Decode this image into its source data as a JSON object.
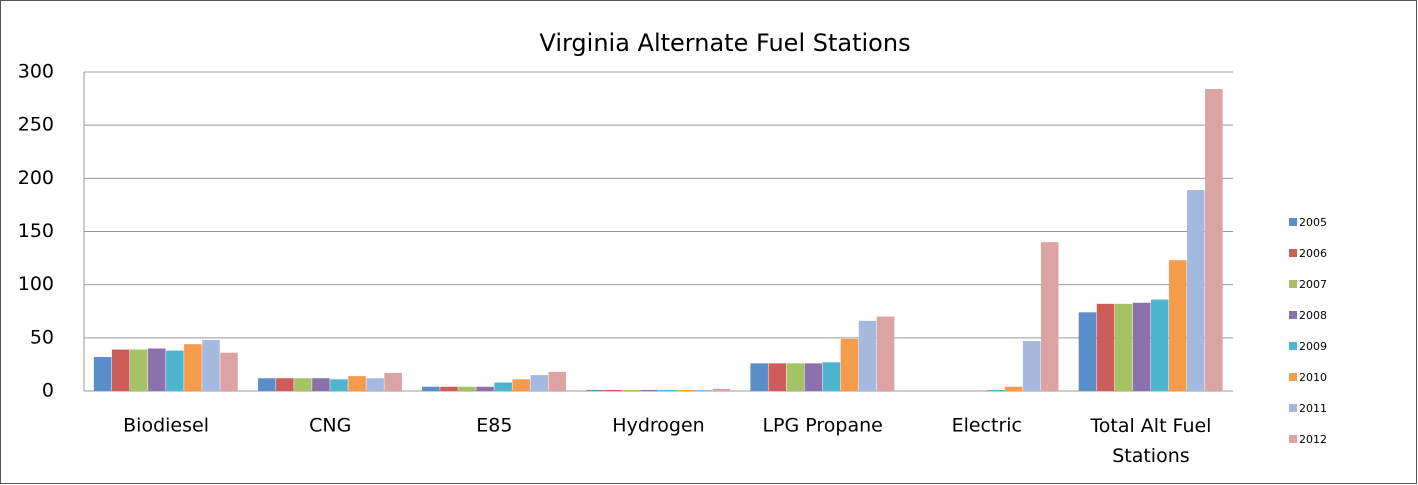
{
  "chart_data": {
    "type": "bar",
    "title": "Virginia Alternate Fuel Stations",
    "categories": [
      "Biodiesel",
      "CNG",
      "E85",
      "Hydrogen",
      "LPG Propane",
      "Electric",
      "Total Alt Fuel Stations"
    ],
    "series": [
      {
        "name": "2005",
        "color": "#5b8ec8",
        "values": [
          32,
          12,
          4,
          1,
          26,
          0,
          74
        ]
      },
      {
        "name": "2006",
        "color": "#cd5c5a",
        "values": [
          39,
          12,
          4,
          1,
          26,
          0,
          82
        ]
      },
      {
        "name": "2007",
        "color": "#a5c265",
        "values": [
          39,
          12,
          4,
          1,
          26,
          0,
          82
        ]
      },
      {
        "name": "2008",
        "color": "#8d71ad",
        "values": [
          40,
          12,
          4,
          1,
          26,
          0,
          83
        ]
      },
      {
        "name": "2009",
        "color": "#4fb5cf",
        "values": [
          38,
          11,
          8,
          1,
          27,
          1,
          86
        ]
      },
      {
        "name": "2010",
        "color": "#f59b4c",
        "values": [
          44,
          14,
          11,
          1,
          49,
          4,
          123
        ]
      },
      {
        "name": "2011",
        "color": "#a5b8dd",
        "values": [
          48,
          12,
          15,
          1,
          66,
          47,
          189
        ]
      },
      {
        "name": "2012",
        "color": "#dca3a3",
        "values": [
          36,
          17,
          18,
          2,
          70,
          140,
          284
        ]
      }
    ],
    "ylim": [
      0,
      300
    ],
    "yticks": [
      0,
      50,
      100,
      150,
      200,
      250,
      300
    ],
    "grid": true,
    "legend": "right"
  }
}
